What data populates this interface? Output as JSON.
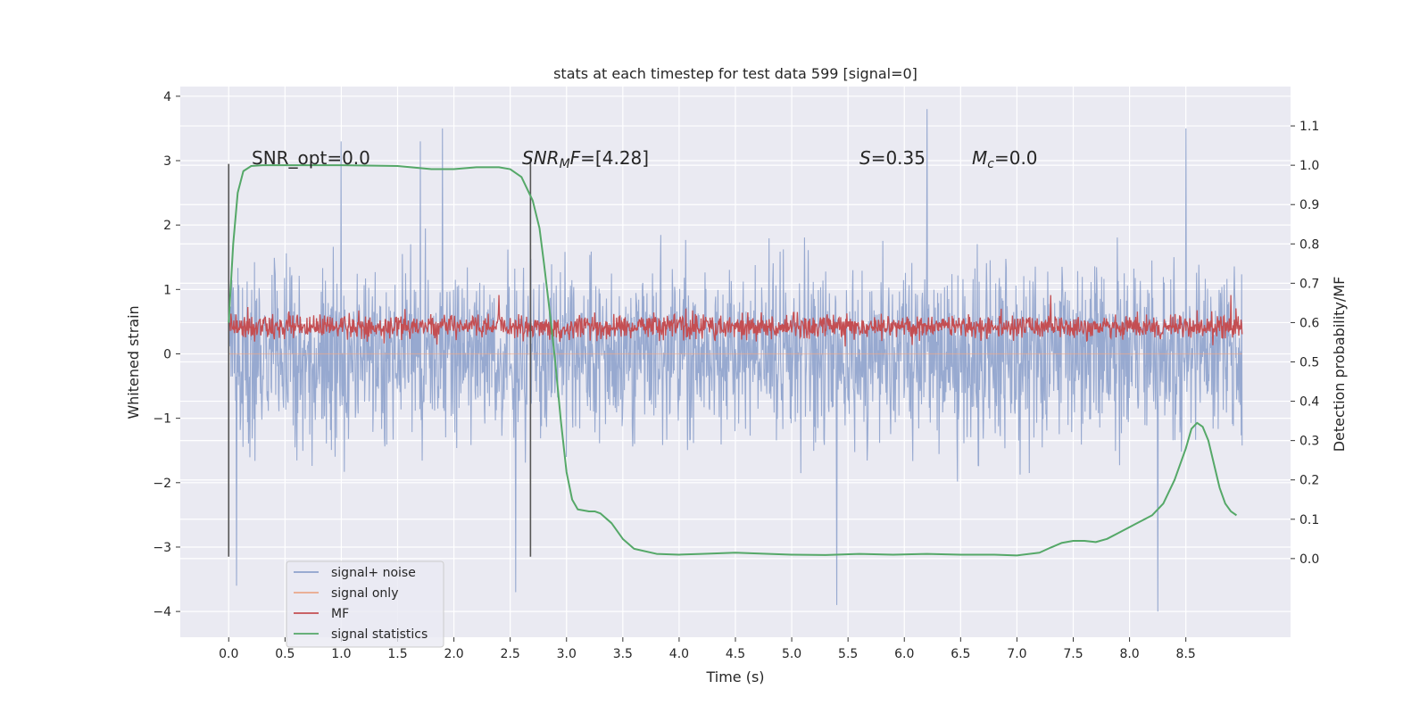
{
  "chart_data": {
    "type": "line",
    "title": "stats at each timestep for test data 599 [signal=0]",
    "xlabel": "Time (s)",
    "ylabel": "Whitened strain",
    "ylabel_right": "Detection probability/MF",
    "xlim": [
      -0.43,
      9.43
    ],
    "ylim": [
      -4.4,
      4.15
    ],
    "ylim_right": [
      -0.2,
      1.2
    ],
    "x_ticks": [
      0.0,
      0.5,
      1.0,
      1.5,
      2.0,
      2.5,
      3.0,
      3.5,
      4.0,
      4.5,
      5.0,
      5.5,
      6.0,
      6.5,
      7.0,
      7.5,
      8.0,
      8.5
    ],
    "x_tick_labels": [
      "0.0",
      "0.5",
      "1.0",
      "1.5",
      "2.0",
      "2.5",
      "3.0",
      "3.5",
      "4.0",
      "4.5",
      "5.0",
      "5.5",
      "6.0",
      "6.5",
      "7.0",
      "7.5",
      "8.0",
      "8.5"
    ],
    "y_ticks": [
      -4,
      -3,
      -2,
      -1,
      0,
      1,
      2,
      3,
      4
    ],
    "y_tick_labels": [
      "−4",
      "−3",
      "−2",
      "−1",
      "0",
      "1",
      "2",
      "3",
      "4"
    ],
    "y_ticks_right": [
      0.0,
      0.1,
      0.2,
      0.3,
      0.4,
      0.5,
      0.6,
      0.7,
      0.8,
      0.9,
      1.0,
      1.1
    ],
    "y_tick_labels_right": [
      "0.0",
      "0.1",
      "0.2",
      "0.3",
      "0.4",
      "0.5",
      "0.6",
      "0.7",
      "0.8",
      "0.9",
      "1.0",
      "1.1"
    ],
    "grid": true,
    "legend_position": "lower-left",
    "colors": {
      "signal_noise": "#8ea2cc",
      "signal_only": "#eaa78a",
      "mf": "#c44e52",
      "signal_statistics": "#55a868",
      "markers": "#555555",
      "background": "#eaeaf2"
    },
    "series": [
      {
        "name": "signal+ noise",
        "axis": "left",
        "description_range": [
          0.0,
          9.0
        ],
        "typical_band": [
          -1.5,
          1.5
        ],
        "peaks": [
          [
            1.0,
            3.3
          ],
          [
            1.7,
            3.3
          ],
          [
            1.9,
            3.5
          ],
          [
            6.2,
            3.8
          ],
          [
            8.5,
            3.5
          ],
          [
            0.07,
            -3.6
          ],
          [
            2.55,
            -3.7
          ],
          [
            5.4,
            -3.9
          ],
          [
            8.25,
            -4.0
          ]
        ]
      },
      {
        "name": "signal only",
        "axis": "left",
        "values_constant": 0.0
      },
      {
        "name": "MF",
        "axis": "right",
        "range": [
          0.0,
          9.0
        ],
        "typical_band": [
          0.54,
          0.64
        ],
        "peaks": [
          [
            2.4,
            0.67
          ],
          [
            7.3,
            0.67
          ],
          [
            8.9,
            0.67
          ]
        ]
      },
      {
        "name": "signal statistics",
        "axis": "right",
        "x": [
          0.0,
          0.04,
          0.08,
          0.13,
          0.2,
          0.3,
          0.5,
          1.0,
          1.5,
          1.8,
          2.0,
          2.2,
          2.4,
          2.5,
          2.6,
          2.7,
          2.76,
          2.8,
          2.85,
          2.9,
          2.95,
          3.0,
          3.05,
          3.1,
          3.2,
          3.25,
          3.3,
          3.4,
          3.5,
          3.6,
          3.8,
          4.0,
          4.2,
          4.5,
          4.8,
          5.0,
          5.3,
          5.6,
          5.9,
          6.2,
          6.5,
          6.8,
          7.0,
          7.2,
          7.3,
          7.4,
          7.5,
          7.6,
          7.7,
          7.8,
          7.9,
          8.0,
          8.1,
          8.2,
          8.3,
          8.4,
          8.5,
          8.55,
          8.6,
          8.65,
          8.7,
          8.75,
          8.8,
          8.85,
          8.9,
          8.95
        ],
        "values": [
          0.6,
          0.8,
          0.93,
          0.985,
          0.998,
          1.0,
          1.0,
          1.0,
          0.998,
          0.99,
          0.99,
          0.995,
          0.995,
          0.99,
          0.97,
          0.91,
          0.84,
          0.75,
          0.63,
          0.5,
          0.35,
          0.22,
          0.15,
          0.125,
          0.12,
          0.12,
          0.115,
          0.09,
          0.05,
          0.025,
          0.012,
          0.01,
          0.012,
          0.015,
          0.012,
          0.01,
          0.009,
          0.012,
          0.01,
          0.012,
          0.01,
          0.01,
          0.008,
          0.015,
          0.028,
          0.04,
          0.045,
          0.045,
          0.042,
          0.05,
          0.065,
          0.08,
          0.095,
          0.11,
          0.14,
          0.2,
          0.28,
          0.33,
          0.345,
          0.335,
          0.3,
          0.24,
          0.18,
          0.14,
          0.12,
          0.11
        ]
      }
    ],
    "vertical_markers": [
      {
        "x": 0.0,
        "ymin": -3.15,
        "ymax": 2.95
      },
      {
        "x": 2.68,
        "ymin": -3.15,
        "ymax": 3.05
      }
    ],
    "annotations": {
      "snr_opt": "SNR_opt=0.0",
      "snr_mf_sym": "SNR",
      "snr_mf_sub": "M",
      "snr_mf_rest": "F=[4.28]",
      "s_sym": "S",
      "s_val": "=0.35",
      "mc_sym": "M",
      "mc_sub": "c",
      "mc_val": "=0.0"
    }
  }
}
